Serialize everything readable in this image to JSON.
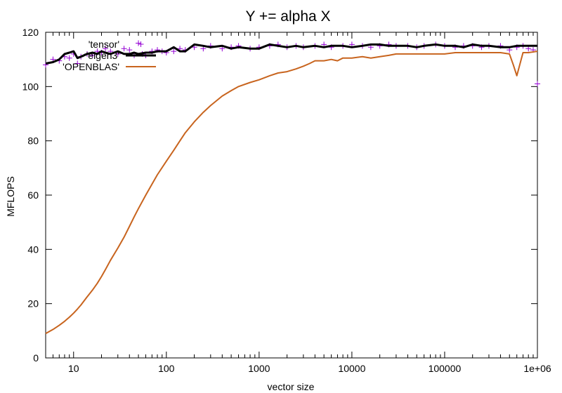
{
  "chart_data": {
    "type": "line",
    "title": "Y += alpha X",
    "xlabel": "vector size",
    "ylabel": "MFLOPS",
    "xscale": "log",
    "xlim": [
      5,
      1000000
    ],
    "ylim": [
      0,
      120
    ],
    "xticks": [
      {
        "value": 10,
        "label": "10"
      },
      {
        "value": 100,
        "label": "100"
      },
      {
        "value": 1000,
        "label": "1000"
      },
      {
        "value": 10000,
        "label": "10000"
      },
      {
        "value": 100000,
        "label": "100000"
      },
      {
        "value": 1000000,
        "label": "1e+06"
      }
    ],
    "yticks": [
      0,
      20,
      40,
      60,
      80,
      100,
      120
    ],
    "grid": false,
    "legend_position": "top-left",
    "series": [
      {
        "name": "'tensor'",
        "style": "points",
        "marker": "+",
        "color": "#9400d3",
        "x": [
          5,
          6,
          7,
          8,
          9,
          10,
          11,
          12,
          14,
          16,
          18,
          20,
          22,
          25,
          30,
          35,
          40,
          45,
          50,
          55,
          60,
          70,
          80,
          90,
          100,
          120,
          140,
          160,
          200,
          250,
          300,
          400,
          500,
          600,
          800,
          1000,
          1300,
          1600,
          2000,
          2500,
          3000,
          4000,
          5000,
          6000,
          8000,
          10000,
          13000,
          16000,
          20000,
          25000,
          30000,
          40000,
          50000,
          60000,
          80000,
          100000,
          130000,
          160000,
          200000,
          250000,
          300000,
          400000,
          500000,
          600000,
          700000,
          800000,
          900000,
          1000000
        ],
        "y": [
          108,
          110,
          109.5,
          111,
          110.5,
          112,
          108.5,
          111,
          112,
          111.5,
          113,
          112.5,
          114,
          113,
          112,
          114,
          113.5,
          111.5,
          116,
          112,
          111.5,
          113,
          113.5,
          113,
          112.5,
          113,
          114,
          113.5,
          114.5,
          114,
          115,
          114,
          114.5,
          115,
          114,
          114.5,
          115,
          115.5,
          114.5,
          115,
          114.5,
          115,
          115.5,
          114.5,
          115,
          115.5,
          115,
          114.5,
          115,
          115.5,
          115,
          115,
          114.5,
          115,
          115.5,
          115,
          114.5,
          115,
          115,
          114.5,
          115,
          115,
          113.5,
          114.5,
          115,
          114,
          113.5,
          101
        ]
      },
      {
        "name": "'eigen3'",
        "style": "line",
        "color": "#000000",
        "x": [
          5,
          6,
          7,
          8,
          9,
          10,
          11,
          12,
          14,
          16,
          18,
          20,
          22,
          25,
          30,
          35,
          40,
          45,
          50,
          60,
          70,
          80,
          100,
          120,
          140,
          160,
          200,
          250,
          300,
          400,
          500,
          600,
          800,
          1000,
          1300,
          1600,
          2000,
          2500,
          3000,
          4000,
          5000,
          6000,
          8000,
          10000,
          13000,
          16000,
          20000,
          25000,
          30000,
          40000,
          50000,
          60000,
          80000,
          100000,
          130000,
          160000,
          200000,
          250000,
          300000,
          400000,
          500000,
          600000,
          800000,
          1000000
        ],
        "y": [
          108.5,
          109,
          110,
          112,
          112.5,
          113,
          110.5,
          111,
          112,
          112.5,
          112,
          113,
          112.5,
          112,
          113,
          112,
          112,
          112.5,
          112,
          112.5,
          112.5,
          113,
          113,
          114.5,
          113,
          113,
          115.5,
          115,
          114.5,
          115,
          114,
          114.5,
          114,
          114,
          115.5,
          115,
          114.5,
          115,
          114.5,
          115,
          114.5,
          115,
          115,
          114.5,
          115,
          115.5,
          115.5,
          115,
          115,
          115,
          114.5,
          115,
          115.5,
          115,
          115,
          114.5,
          115.5,
          115,
          115,
          114.5,
          114.5,
          115,
          115,
          115
        ]
      },
      {
        "name": "'OPENBLAS'",
        "style": "line",
        "color": "#c8641e",
        "x": [
          5,
          6,
          7,
          8,
          9,
          10,
          11,
          12,
          14,
          16,
          18,
          20,
          22,
          25,
          30,
          35,
          40,
          45,
          50,
          60,
          70,
          80,
          100,
          120,
          140,
          160,
          200,
          250,
          300,
          400,
          500,
          600,
          800,
          1000,
          1300,
          1600,
          2000,
          2500,
          3000,
          3500,
          4000,
          5000,
          6000,
          7000,
          8000,
          10000,
          13000,
          16000,
          20000,
          25000,
          30000,
          40000,
          50000,
          60000,
          80000,
          100000,
          130000,
          160000,
          200000,
          250000,
          300000,
          400000,
          500000,
          550000,
          600000,
          700000,
          800000,
          1000000
        ],
        "y": [
          9,
          10.5,
          12,
          13.5,
          15,
          16.5,
          18,
          19.5,
          22.5,
          25,
          27.5,
          30,
          32.5,
          36,
          40.5,
          44.5,
          48.5,
          52,
          55,
          60,
          64,
          67.5,
          72.5,
          76.5,
          80,
          83,
          87,
          90.5,
          93,
          96.5,
          98.5,
          100,
          101.5,
          102.5,
          104,
          105,
          105.5,
          106.5,
          107.5,
          108.5,
          109.5,
          109.5,
          110,
          109.5,
          110.5,
          110.5,
          111,
          110.5,
          111,
          111.5,
          112,
          112,
          112,
          112,
          112,
          112,
          112.5,
          112.5,
          112.5,
          112.5,
          112.5,
          112.5,
          112,
          108,
          104,
          112.5,
          112.5,
          113
        ]
      }
    ]
  }
}
